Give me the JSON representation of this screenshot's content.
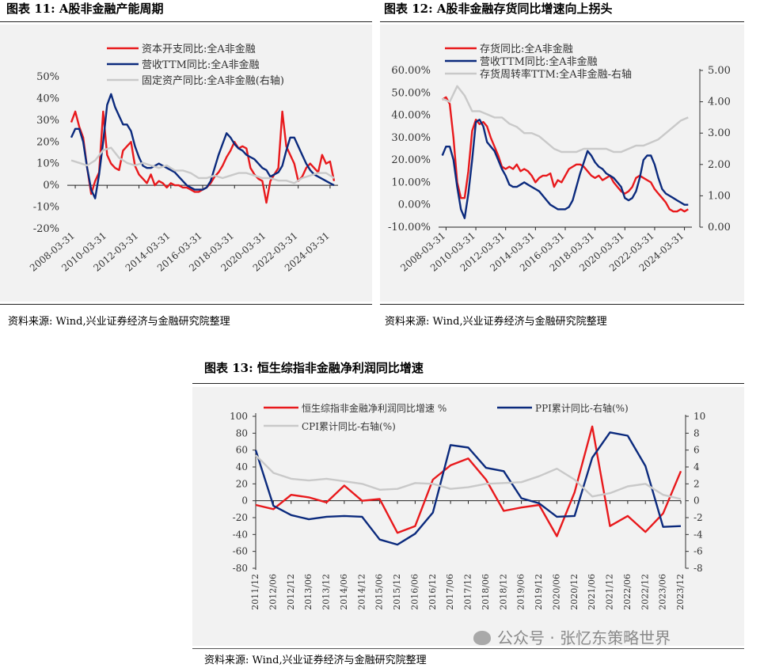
{
  "fig11": {
    "title": "图表 11:  A股非金融产能周期",
    "source": "资料来源:  Wind,兴业证券经济与金融研究院整理"
  },
  "fig12": {
    "title": "图表 12:  A股非金融存货同比增速向上拐头",
    "source": "资料来源:  Wind,兴业证券经济与金融研究院整理"
  },
  "fig13": {
    "title": "图表 13:  恒生综指非金融净利润同比增速",
    "source": "资料来源:  Wind,兴业证券经济与金融研究院整理"
  },
  "watermark": "公众号 · 张忆东策略世界",
  "chart_data": [
    {
      "id": "chart11",
      "type": "line",
      "categories": [
        "2008-03-31",
        "2010-03-31",
        "2012-03-31",
        "2014-03-31",
        "2016-03-31",
        "2018-03-31",
        "2020-03-31",
        "2022-03-31",
        "2024-03-31"
      ],
      "ylim": [
        -20,
        50
      ],
      "yticks": [
        "-20%",
        "-10%",
        "0%",
        "10%",
        "20%",
        "30%",
        "40%",
        "50%"
      ],
      "yticks_values": [
        -20,
        -10,
        0,
        10,
        20,
        30,
        40,
        50
      ],
      "ylim_right": [
        -10,
        50
      ],
      "legend_position": "top",
      "colors": {
        "capex": "#e8191c",
        "revenue": "#0b2a7d",
        "fixed": "#c9c9c9"
      },
      "series": [
        {
          "name": "资本开支同比:全A非金融",
          "key": "capex",
          "axis": "left",
          "x": [
            2008.0,
            2008.25,
            2008.5,
            2008.75,
            2009.0,
            2009.25,
            2009.5,
            2009.75,
            2010.0,
            2010.25,
            2010.5,
            2010.75,
            2011.0,
            2011.25,
            2011.5,
            2011.75,
            2012.0,
            2012.25,
            2012.5,
            2012.75,
            2013.0,
            2013.25,
            2013.5,
            2013.75,
            2014.0,
            2014.25,
            2014.5,
            2014.75,
            2015.0,
            2015.25,
            2015.5,
            2015.75,
            2016.0,
            2016.25,
            2016.5,
            2016.75,
            2017.0,
            2017.25,
            2017.5,
            2017.75,
            2018.0,
            2018.25,
            2018.5,
            2018.75,
            2019.0,
            2019.25,
            2019.5,
            2019.75,
            2020.0,
            2020.25,
            2020.5,
            2020.75,
            2021.0,
            2021.25,
            2021.5,
            2021.75,
            2022.0,
            2022.25,
            2022.5,
            2022.75,
            2023.0,
            2023.25,
            2023.5,
            2023.75,
            2024.0,
            2024.25,
            2024.5
          ],
          "values": [
            29,
            34,
            27,
            22,
            8,
            -4,
            2,
            6,
            34,
            14,
            10,
            8,
            7,
            16,
            18,
            20,
            9,
            5,
            3,
            1,
            5,
            0,
            2,
            1,
            -1,
            1,
            0,
            0,
            -1,
            -1,
            -2,
            -3,
            -3,
            -2,
            -1,
            1,
            4,
            6,
            9,
            13,
            16,
            20,
            17,
            18,
            17,
            8,
            5,
            3,
            2,
            -8,
            2,
            5,
            8,
            34,
            18,
            14,
            10,
            2,
            4,
            8,
            10,
            8,
            6,
            14,
            10,
            11,
            2
          ]
        },
        {
          "name": "营收TTM同比:全A非金融",
          "key": "revenue",
          "axis": "left",
          "x": [
            2008.0,
            2008.25,
            2008.5,
            2008.75,
            2009.0,
            2009.25,
            2009.5,
            2009.75,
            2010.0,
            2010.25,
            2010.5,
            2010.75,
            2011.0,
            2011.25,
            2011.5,
            2011.75,
            2012.0,
            2012.25,
            2012.5,
            2012.75,
            2013.0,
            2013.25,
            2013.5,
            2013.75,
            2014.0,
            2014.25,
            2014.5,
            2014.75,
            2015.0,
            2015.25,
            2015.5,
            2015.75,
            2016.0,
            2016.25,
            2016.5,
            2016.75,
            2017.0,
            2017.25,
            2017.5,
            2017.75,
            2018.0,
            2018.25,
            2018.5,
            2018.75,
            2019.0,
            2019.25,
            2019.5,
            2019.75,
            2020.0,
            2020.25,
            2020.5,
            2020.75,
            2021.0,
            2021.25,
            2021.5,
            2021.75,
            2022.0,
            2022.25,
            2022.5,
            2022.75,
            2023.0,
            2023.25,
            2023.5,
            2023.75,
            2024.0,
            2024.25,
            2024.5
          ],
          "values": [
            22,
            26,
            26,
            20,
            8,
            -2,
            -6,
            5,
            20,
            37,
            42,
            36,
            32,
            28,
            28,
            25,
            18,
            13,
            9,
            8,
            8,
            9,
            10,
            9,
            8,
            7,
            6,
            4,
            2,
            0,
            -1,
            -2,
            -2,
            -2,
            -1,
            2,
            8,
            14,
            19,
            24,
            22,
            19,
            17,
            16,
            14,
            13,
            12,
            10,
            8,
            7,
            4,
            5,
            6,
            9,
            16,
            22,
            22,
            18,
            14,
            10,
            7,
            5,
            4,
            3,
            2,
            1,
            0
          ]
        },
        {
          "name": "固定资产同比:全A非金融(右轴)",
          "key": "fixed",
          "axis": "right",
          "x": [
            2008.0,
            2008.5,
            2009.0,
            2009.5,
            2010.0,
            2010.5,
            2011.0,
            2011.5,
            2012.0,
            2012.5,
            2013.0,
            2013.5,
            2014.0,
            2014.5,
            2015.0,
            2015.5,
            2016.0,
            2016.5,
            2017.0,
            2017.5,
            2018.0,
            2018.5,
            2019.0,
            2019.5,
            2020.0,
            2020.5,
            2021.0,
            2021.5,
            2022.0,
            2022.5,
            2023.0,
            2023.5,
            2024.0,
            2024.5
          ],
          "values": [
            17,
            16,
            15,
            17,
            21,
            22,
            18,
            16,
            15,
            16,
            15,
            14,
            15,
            13,
            13,
            12,
            10,
            10,
            11,
            10,
            11,
            12,
            12,
            11,
            10,
            10,
            9,
            9,
            8,
            10,
            11,
            12,
            12,
            10
          ]
        }
      ]
    },
    {
      "id": "chart12",
      "type": "line",
      "categories": [
        "2008-03-31",
        "2010-03-31",
        "2012-03-31",
        "2014-03-31",
        "2016-03-31",
        "2018-03-31",
        "2020-03-31",
        "2022-03-31",
        "2024-03-31"
      ],
      "ylim": [
        -10,
        60
      ],
      "yticks": [
        "-10.00%",
        "0.00%",
        "10.00%",
        "20.00%",
        "30.00%",
        "40.00%",
        "50.00%",
        "60.00%"
      ],
      "yticks_values": [
        -10,
        0,
        10,
        20,
        30,
        40,
        50,
        60
      ],
      "ylim_right": [
        0,
        5
      ],
      "yticks_right": [
        "0.00",
        "1.00",
        "2.00",
        "3.00",
        "4.00",
        "5.00"
      ],
      "yticks_right_values": [
        0,
        1,
        2,
        3,
        4,
        5
      ],
      "legend_position": "top",
      "colors": {
        "inv": "#e8191c",
        "revenue": "#0b2a7d",
        "turn": "#c9c9c9"
      },
      "series": [
        {
          "name": "存货同比:全A非金融",
          "key": "inv",
          "axis": "left",
          "x": [
            2008.0,
            2008.25,
            2008.5,
            2008.75,
            2009.0,
            2009.25,
            2009.5,
            2009.75,
            2010.0,
            2010.25,
            2010.5,
            2010.75,
            2011.0,
            2011.25,
            2011.5,
            2011.75,
            2012.0,
            2012.25,
            2012.5,
            2012.75,
            2013.0,
            2013.25,
            2013.5,
            2013.75,
            2014.0,
            2014.25,
            2014.5,
            2014.75,
            2015.0,
            2015.25,
            2015.5,
            2015.75,
            2016.0,
            2016.25,
            2016.5,
            2016.75,
            2017.0,
            2017.25,
            2017.5,
            2017.75,
            2018.0,
            2018.25,
            2018.5,
            2018.75,
            2019.0,
            2019.25,
            2019.5,
            2019.75,
            2020.0,
            2020.25,
            2020.5,
            2020.75,
            2021.0,
            2021.25,
            2021.5,
            2021.75,
            2022.0,
            2022.25,
            2022.5,
            2022.75,
            2023.0,
            2023.25,
            2023.5,
            2023.75,
            2024.0,
            2024.25,
            2024.5
          ],
          "values": [
            47,
            48,
            45,
            30,
            10,
            3,
            3,
            15,
            33,
            38,
            36,
            37,
            35,
            30,
            26,
            22,
            17,
            16,
            17,
            16,
            18,
            15,
            16,
            15,
            13,
            10,
            12,
            13,
            13,
            14,
            8,
            11,
            10,
            13,
            16,
            17,
            18,
            18,
            17,
            15,
            13,
            12,
            13,
            11,
            12,
            13,
            10,
            8,
            6,
            5,
            6,
            8,
            12,
            13,
            12,
            11,
            10,
            7,
            5,
            3,
            1,
            -2,
            -3,
            -3,
            -2,
            -3,
            -2
          ]
        },
        {
          "name": "营收TTM同比:全A非金融",
          "key": "revenue",
          "axis": "left",
          "x": [
            2008.0,
            2008.25,
            2008.5,
            2008.75,
            2009.0,
            2009.25,
            2009.5,
            2009.75,
            2010.0,
            2010.25,
            2010.5,
            2010.75,
            2011.0,
            2011.25,
            2011.5,
            2011.75,
            2012.0,
            2012.25,
            2012.5,
            2012.75,
            2013.0,
            2013.25,
            2013.5,
            2013.75,
            2014.0,
            2014.25,
            2014.5,
            2014.75,
            2015.0,
            2015.25,
            2015.5,
            2015.75,
            2016.0,
            2016.25,
            2016.5,
            2016.75,
            2017.0,
            2017.25,
            2017.5,
            2017.75,
            2018.0,
            2018.25,
            2018.5,
            2018.75,
            2019.0,
            2019.25,
            2019.5,
            2019.75,
            2020.0,
            2020.25,
            2020.5,
            2020.75,
            2021.0,
            2021.25,
            2021.5,
            2021.75,
            2022.0,
            2022.25,
            2022.5,
            2022.75,
            2023.0,
            2023.25,
            2023.5,
            2023.75,
            2024.0,
            2024.25,
            2024.5
          ],
          "values": [
            22,
            26,
            26,
            20,
            8,
            -2,
            -6,
            5,
            20,
            37,
            38,
            35,
            28,
            26,
            24,
            20,
            16,
            13,
            9,
            8,
            8,
            9,
            10,
            9,
            8,
            7,
            6,
            4,
            2,
            0,
            -1,
            -2,
            -2,
            -2,
            -1,
            2,
            8,
            14,
            19,
            24,
            22,
            19,
            17,
            16,
            14,
            13,
            12,
            10,
            8,
            3,
            2,
            3,
            6,
            12,
            20,
            22,
            22,
            18,
            12,
            7,
            5,
            4,
            3,
            2,
            1,
            0,
            0
          ]
        },
        {
          "name": "存货周转率TTM:全A非金融-右轴",
          "key": "turn",
          "axis": "right",
          "x": [
            2008.0,
            2008.5,
            2009.0,
            2009.5,
            2010.0,
            2010.5,
            2011.0,
            2011.5,
            2012.0,
            2012.5,
            2013.0,
            2013.5,
            2014.0,
            2014.5,
            2015.0,
            2015.5,
            2016.0,
            2016.5,
            2017.0,
            2017.5,
            2018.0,
            2018.5,
            2019.0,
            2019.5,
            2020.0,
            2020.5,
            2021.0,
            2021.5,
            2022.0,
            2022.5,
            2023.0,
            2023.5,
            2024.0,
            2024.5
          ],
          "values": [
            4.1,
            4.0,
            4.5,
            4.2,
            3.7,
            3.7,
            3.6,
            3.5,
            3.5,
            3.3,
            3.2,
            3.0,
            3.0,
            2.9,
            2.7,
            2.5,
            2.4,
            2.4,
            2.4,
            2.5,
            2.5,
            2.5,
            2.5,
            2.4,
            2.4,
            2.5,
            2.6,
            2.6,
            2.7,
            2.8,
            3.0,
            3.2,
            3.4,
            3.5
          ]
        }
      ]
    },
    {
      "id": "chart13",
      "type": "line",
      "categories": [
        "2011/12",
        "2012/06",
        "2012/12",
        "2013/06",
        "2013/12",
        "2014/06",
        "2014/12",
        "2015/06",
        "2015/12",
        "2016/06",
        "2016/12",
        "2017/06",
        "2017/12",
        "2018/06",
        "2018/12",
        "2019/06",
        "2019/12",
        "2020/06",
        "2020/12",
        "2021/06",
        "2021/12",
        "2022/06",
        "2022/12",
        "2023/06",
        "2023/12"
      ],
      "ylim": [
        -80,
        100
      ],
      "yticks": [
        "-80",
        "-60",
        "-40",
        "-20",
        "0",
        "20",
        "40",
        "60",
        "80",
        "100"
      ],
      "yticks_values": [
        -80,
        -60,
        -40,
        -20,
        0,
        20,
        40,
        60,
        80,
        100
      ],
      "ylim_right": [
        -8,
        10
      ],
      "yticks_right": [
        "-8",
        "-6",
        "-4",
        "-2",
        "0",
        "2",
        "4",
        "6",
        "8",
        "10"
      ],
      "yticks_right_values": [
        -8,
        -6,
        -4,
        -2,
        0,
        2,
        4,
        6,
        8,
        10
      ],
      "legend_position": "top",
      "colors": {
        "hs": "#e8191c",
        "ppi": "#0b2a7d",
        "cpi": "#c9c9c9"
      },
      "series": [
        {
          "name": "恒生综指非金融净利润同比增速 %",
          "key": "hs",
          "axis": "left",
          "values": [
            -5,
            -10,
            7,
            4,
            -2,
            18,
            0,
            2,
            -38,
            -30,
            25,
            42,
            50,
            25,
            -12,
            -8,
            -5,
            -42,
            10,
            88,
            -30,
            -18,
            -37,
            -15,
            35
          ]
        },
        {
          "name": "PPI累计同比-右轴(%)",
          "key": "ppi",
          "axis": "right",
          "values": [
            6.0,
            -0.6,
            -1.7,
            -2.2,
            -1.9,
            -1.8,
            -1.9,
            -4.6,
            -5.2,
            -3.9,
            -1.4,
            6.6,
            6.3,
            3.9,
            3.5,
            0.3,
            -0.3,
            -1.9,
            -1.8,
            5.1,
            8.1,
            7.7,
            4.1,
            -3.1,
            -3.0
          ]
        },
        {
          "name": "CPI累计同比-右轴(%)",
          "key": "cpi",
          "axis": "right",
          "values": [
            5.4,
            3.3,
            2.6,
            2.4,
            2.6,
            2.3,
            2.0,
            1.3,
            1.4,
            2.1,
            2.0,
            1.4,
            1.6,
            2.0,
            2.1,
            2.2,
            2.9,
            3.8,
            2.5,
            0.5,
            0.9,
            1.7,
            2.0,
            0.7,
            0.2
          ]
        }
      ]
    }
  ]
}
